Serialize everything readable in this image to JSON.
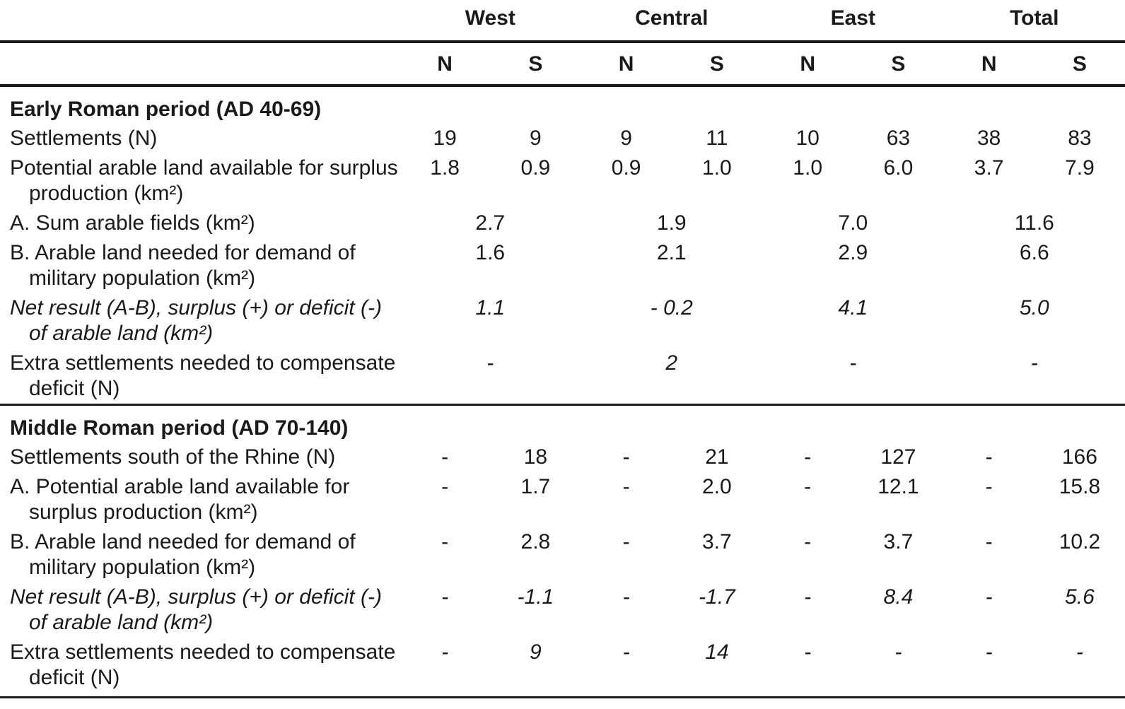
{
  "table": {
    "region_groups": [
      "West",
      "Central",
      "East",
      "Total"
    ],
    "subheaders": [
      "N",
      "S",
      "N",
      "S",
      "N",
      "S",
      "N",
      "S"
    ],
    "sections": [
      {
        "title": "Early Roman period (AD 40-69)",
        "rows": [
          {
            "label": "Settlements (N)",
            "values": [
              "19",
              "9",
              "9",
              "11",
              "10",
              "63",
              "38",
              "83"
            ]
          },
          {
            "label": "Potential arable land available for surplus\nproduction (km²)",
            "values": [
              "1.8",
              "0.9",
              "0.9",
              "1.0",
              "1.0",
              "6.0",
              "3.7",
              "7.9"
            ]
          },
          {
            "label": "A. Sum arable fields (km²)",
            "values": [
              "2.7",
              "1.9",
              "7.0",
              "11.6"
            ]
          },
          {
            "label": "B. Arable land needed for demand of\nmilitary population (km²)",
            "values": [
              "1.6",
              "2.1",
              "2.9",
              "6.6"
            ]
          },
          {
            "label": "Net result (A-B), surplus (+) or deficit (-)\nof arable land (km²)",
            "values": [
              "1.1",
              "- 0.2",
              "4.1",
              "5.0"
            ]
          },
          {
            "label": "Extra settlements needed to compensate\ndeficit (N)",
            "values": [
              "-",
              "2",
              "-",
              "-"
            ]
          }
        ]
      },
      {
        "title": "Middle Roman period (AD 70-140)",
        "rows": [
          {
            "label": "Settlements south of the Rhine (N)",
            "values": [
              "-",
              "18",
              "-",
              "21",
              "-",
              "127",
              "-",
              "166"
            ]
          },
          {
            "label": "A. Potential arable land available for\nsurplus production (km²)",
            "values": [
              "-",
              "1.7",
              "-",
              "2.0",
              "-",
              "12.1",
              "-",
              "15.8"
            ]
          },
          {
            "label": "B. Arable land needed for demand of\nmilitary population (km²)",
            "values": [
              "-",
              "2.8",
              "-",
              "3.7",
              "-",
              "3.7",
              "-",
              "10.2"
            ]
          },
          {
            "label": "Net result (A-B), surplus (+) or deficit (-)\nof arable land (km²)",
            "values": [
              "-",
              "-1.1",
              "-",
              "-1.7",
              "-",
              "8.4",
              "-",
              "5.6"
            ]
          },
          {
            "label": "Extra settlements needed to compensate\ndeficit (N)",
            "values": [
              "-",
              "9",
              "-",
              "14",
              "-",
              "-",
              "-",
              "-"
            ]
          }
        ]
      }
    ]
  }
}
